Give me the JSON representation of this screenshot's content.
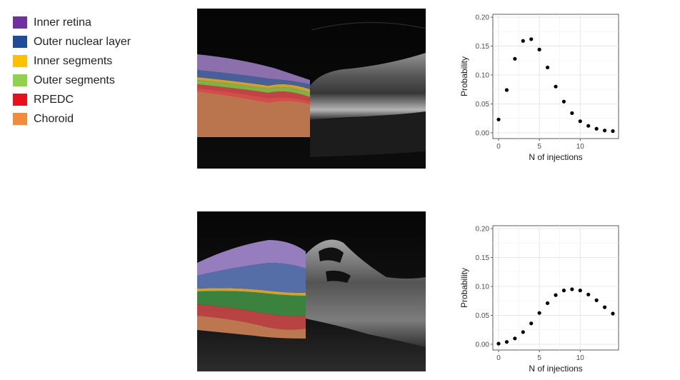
{
  "legend": {
    "items": [
      {
        "label": "Inner retina",
        "color": "#7030a0"
      },
      {
        "label": "Outer nuclear layer",
        "color": "#1f4e96"
      },
      {
        "label": "Inner segments",
        "color": "#ffc000"
      },
      {
        "label": "Outer segments",
        "color": "#92d050"
      },
      {
        "label": "RPEDC",
        "color": "#e8101a"
      },
      {
        "label": "Choroid",
        "color": "#f08c3c"
      }
    ]
  },
  "oct_images": [
    {
      "description": "segmented OCT scan, thin retina",
      "icon": "oct-scan-image"
    },
    {
      "description": "segmented OCT scan, thickened retina with fluid",
      "icon": "oct-scan-image"
    }
  ],
  "chart_data": [
    {
      "type": "scatter",
      "title": "",
      "xlabel": "N of injections",
      "ylabel": "Probability",
      "xlim": [
        -0.7,
        14.7
      ],
      "ylim": [
        -0.01,
        0.205
      ],
      "xticks": [
        0,
        5,
        10
      ],
      "xtick_labels": [
        "0",
        "5",
        "10"
      ],
      "yticks": [
        0,
        0.05,
        0.1,
        0.15,
        0.2
      ],
      "ytick_labels": [
        "0.00",
        "0.05",
        "0.10",
        "0.15",
        "0.20"
      ],
      "grid": true,
      "x": [
        0,
        1,
        2,
        3,
        4,
        5,
        6,
        7,
        8,
        9,
        10,
        11,
        12,
        13,
        14
      ],
      "y": [
        0.023,
        0.074,
        0.128,
        0.159,
        0.162,
        0.144,
        0.113,
        0.08,
        0.054,
        0.034,
        0.02,
        0.012,
        0.007,
        0.004,
        0.003
      ]
    },
    {
      "type": "scatter",
      "title": "",
      "xlabel": "N of injections",
      "ylabel": "Probability",
      "xlim": [
        -0.7,
        14.7
      ],
      "ylim": [
        -0.01,
        0.205
      ],
      "xticks": [
        0,
        5,
        10
      ],
      "xtick_labels": [
        "0",
        "5",
        "10"
      ],
      "yticks": [
        0,
        0.05,
        0.1,
        0.15,
        0.2
      ],
      "ytick_labels": [
        "0.00",
        "0.05",
        "0.10",
        "0.15",
        "0.20"
      ],
      "grid": true,
      "x": [
        0,
        1,
        2,
        3,
        4,
        5,
        6,
        7,
        8,
        9,
        10,
        11,
        12,
        13,
        14
      ],
      "y": [
        0.001,
        0.004,
        0.01,
        0.021,
        0.036,
        0.054,
        0.071,
        0.085,
        0.093,
        0.095,
        0.093,
        0.086,
        0.076,
        0.064,
        0.053
      ]
    }
  ]
}
